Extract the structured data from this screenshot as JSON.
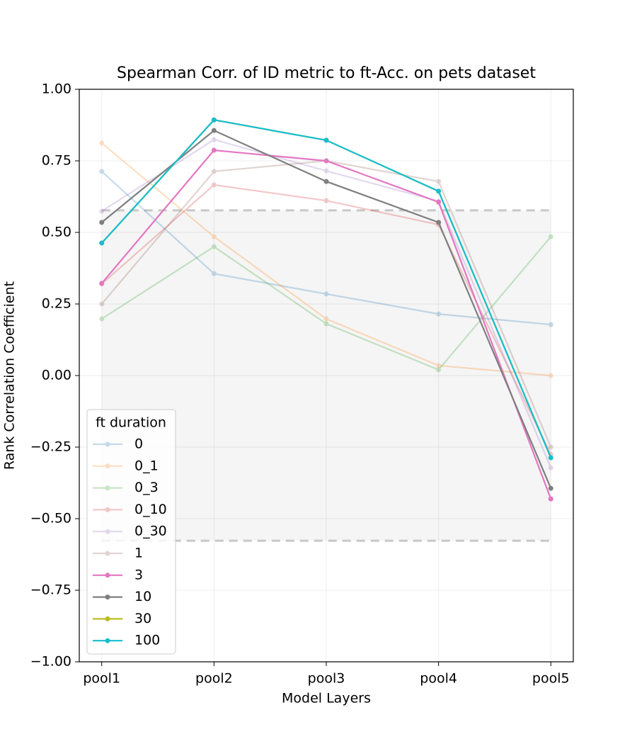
{
  "chart_data": {
    "type": "line",
    "title": "Spearman Corr. of ID metric to ft-Acc. on pets dataset",
    "xlabel": "Model Layers",
    "ylabel": "Rank Correlation Coefficient",
    "categories": [
      "pool1",
      "pool2",
      "pool3",
      "pool4",
      "pool5"
    ],
    "ylim": [
      -1,
      1
    ],
    "yticks": [
      {
        "value": -1,
        "label": "−1.00"
      },
      {
        "value": -0.75,
        "label": "−0.75"
      },
      {
        "value": -0.5,
        "label": "−0.50"
      },
      {
        "value": -0.25,
        "label": "−0.25"
      },
      {
        "value": 0,
        "label": "0.00"
      },
      {
        "value": 0.25,
        "label": "0.25"
      },
      {
        "value": 0.5,
        "label": "0.50"
      },
      {
        "value": 0.75,
        "label": "0.75"
      },
      {
        "value": 1,
        "label": "1.00"
      }
    ],
    "grid": true,
    "band": [
      -0.577,
      0.577
    ],
    "legend": {
      "title": "ft duration",
      "position": "lower left"
    },
    "series": [
      {
        "name": "0",
        "color": "#1f77b4",
        "opacity": 0.25,
        "values": [
          0.713,
          0.356,
          0.285,
          0.215,
          0.178
        ]
      },
      {
        "name": "0_1",
        "color": "#ff7f0e",
        "opacity": 0.25,
        "values": [
          0.812,
          0.485,
          0.198,
          0.035,
          0.0
        ]
      },
      {
        "name": "0_3",
        "color": "#2ca02c",
        "opacity": 0.25,
        "values": [
          0.198,
          0.45,
          0.181,
          0.02,
          0.485
        ]
      },
      {
        "name": "0_10",
        "color": "#d62728",
        "opacity": 0.25,
        "values": [
          0.32,
          0.666,
          0.611,
          0.527,
          -0.275
        ]
      },
      {
        "name": "0_30",
        "color": "#9467bd",
        "opacity": 0.25,
        "values": [
          0.574,
          0.824,
          0.715,
          0.609,
          -0.322
        ]
      },
      {
        "name": "1",
        "color": "#8c564b",
        "opacity": 0.25,
        "values": [
          0.25,
          0.713,
          0.75,
          0.678,
          -0.25
        ]
      },
      {
        "name": "3",
        "color": "#e377c2",
        "opacity": 1,
        "values": [
          0.322,
          0.787,
          0.75,
          0.606,
          -0.431
        ]
      },
      {
        "name": "10",
        "color": "#7f7f7f",
        "opacity": 1,
        "values": [
          0.535,
          0.856,
          0.678,
          0.535,
          -0.394
        ]
      },
      {
        "name": "30",
        "color": "#bcbd22",
        "opacity": 1,
        "values": [
          0.463,
          0.893,
          0.822,
          0.644,
          -0.287
        ]
      },
      {
        "name": "100",
        "color": "#17becf",
        "opacity": 1,
        "values": [
          0.463,
          0.893,
          0.822,
          0.644,
          -0.287
        ]
      }
    ]
  }
}
